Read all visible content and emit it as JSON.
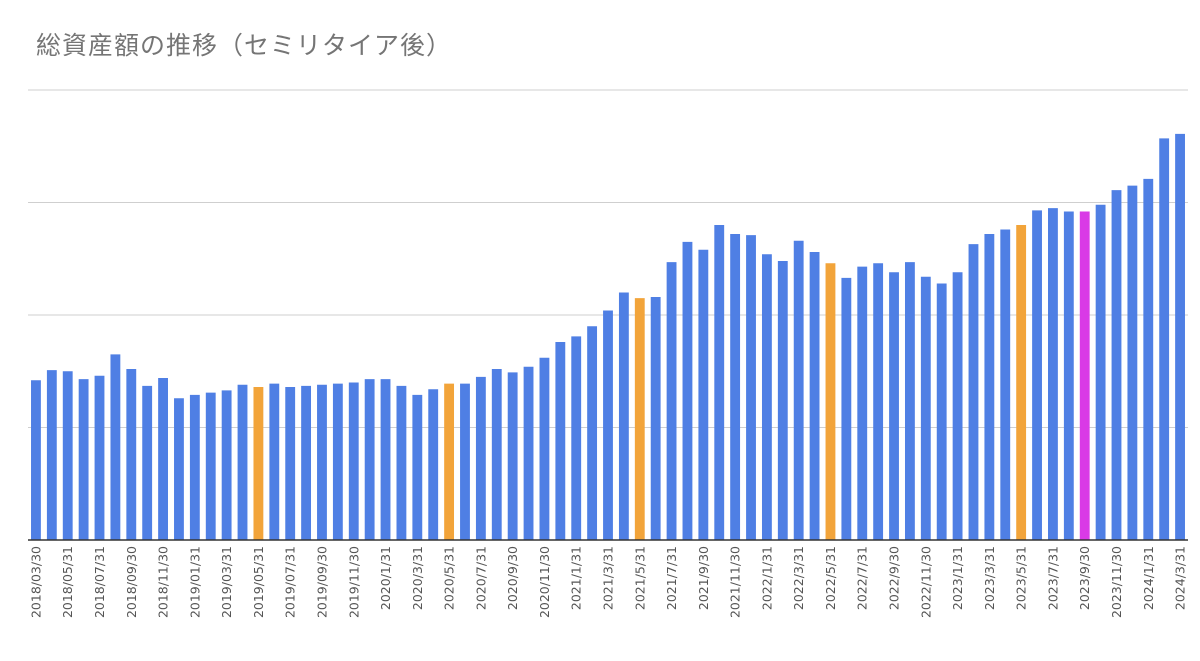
{
  "chart_data": {
    "type": "bar",
    "title": "総資産額の推移（セミリタイア後）",
    "xlabel": "",
    "ylabel": "",
    "ylim": [
      0,
      4
    ],
    "grid": true,
    "legend": "none",
    "colors": {
      "default": "#4f7fe4",
      "highlight_orange": "#f2a43a",
      "highlight_magenta": "#d93ae6",
      "grid": "#cfcfcf",
      "axis": "#333333"
    },
    "categories": [
      "2018/03/30",
      "2018/04/30",
      "2018/05/31",
      "2018/06/30",
      "2018/07/31",
      "2018/08/31",
      "2018/09/30",
      "2018/10/31",
      "2018/11/30",
      "2018/12/31",
      "2019/01/31",
      "2019/02/28",
      "2019/03/31",
      "2019/04/30",
      "2019/05/31",
      "2019/06/30",
      "2019/07/31",
      "2019/08/31",
      "2019/09/30",
      "2019/10/31",
      "2019/11/30",
      "2019/12/31",
      "2020/1/31",
      "2020/2/29",
      "2020/3/31",
      "2020/4/30",
      "2020/5/31",
      "2020/6/30",
      "2020/7/31",
      "2020/8/31",
      "2020/9/30",
      "2020/10/31",
      "2020/11/30",
      "2020/12/31",
      "2021/1/31",
      "2021/2/28",
      "2021/3/31",
      "2021/4/30",
      "2021/5/31",
      "2021/6/30",
      "2021/7/31",
      "2021/8/31",
      "2021/9/30",
      "2021/10/31",
      "2021/11/30",
      "2021/12/31",
      "2022/1/31",
      "2022/2/28",
      "2022/3/31",
      "2022/4/30",
      "2022/5/31",
      "2022/6/30",
      "2022/7/31",
      "2022/8/31",
      "2022/9/30",
      "2022/10/31",
      "2022/11/30",
      "2022/12/31",
      "2023/1/31",
      "2023/2/28",
      "2023/3/31",
      "2023/4/30",
      "2023/5/31",
      "2023/6/30",
      "2023/7/31",
      "2023/8/31",
      "2023/9/30",
      "2023/10/31",
      "2023/11/30",
      "2023/12/31",
      "2024/1/31",
      "2024/2/29",
      "2024/3/31"
    ],
    "tick_labels": [
      "2018/03/30",
      "2018/05/31",
      "2018/07/31",
      "2018/09/30",
      "2018/11/30",
      "2019/01/31",
      "2019/03/31",
      "2019/05/31",
      "2019/07/31",
      "2019/09/30",
      "2019/11/30",
      "2020/1/31",
      "2020/3/31",
      "2020/5/31",
      "2020/7/31",
      "2020/9/30",
      "2020/11/30",
      "2021/1/31",
      "2021/3/31",
      "2021/5/31",
      "2021/7/31",
      "2021/9/30",
      "2021/11/30",
      "2022/1/31",
      "2022/3/31",
      "2022/5/31",
      "2022/7/31",
      "2022/9/30",
      "2022/11/30",
      "2023/1/31",
      "2023/3/31",
      "2023/5/31",
      "2023/7/31",
      "2023/9/30",
      "2023/11/30",
      "2024/1/31",
      "2024/3/31"
    ],
    "values": [
      1.42,
      1.51,
      1.5,
      1.43,
      1.46,
      1.65,
      1.52,
      1.37,
      1.44,
      1.26,
      1.29,
      1.31,
      1.33,
      1.38,
      1.36,
      1.39,
      1.36,
      1.37,
      1.38,
      1.39,
      1.4,
      1.43,
      1.43,
      1.37,
      1.29,
      1.34,
      1.39,
      1.39,
      1.45,
      1.52,
      1.49,
      1.54,
      1.62,
      1.76,
      1.81,
      1.9,
      2.04,
      2.2,
      2.15,
      2.16,
      2.47,
      2.65,
      2.58,
      2.8,
      2.72,
      2.71,
      2.54,
      2.48,
      2.66,
      2.56,
      2.46,
      2.33,
      2.43,
      2.46,
      2.38,
      2.47,
      2.34,
      2.28,
      2.38,
      2.63,
      2.72,
      2.76,
      2.8,
      2.93,
      2.95,
      2.92,
      2.92,
      2.98,
      3.11,
      3.15,
      3.21,
      3.57,
      3.61
    ],
    "highlight_orange": [
      14,
      26,
      38,
      50,
      62
    ],
    "highlight_magenta": [
      66
    ]
  }
}
